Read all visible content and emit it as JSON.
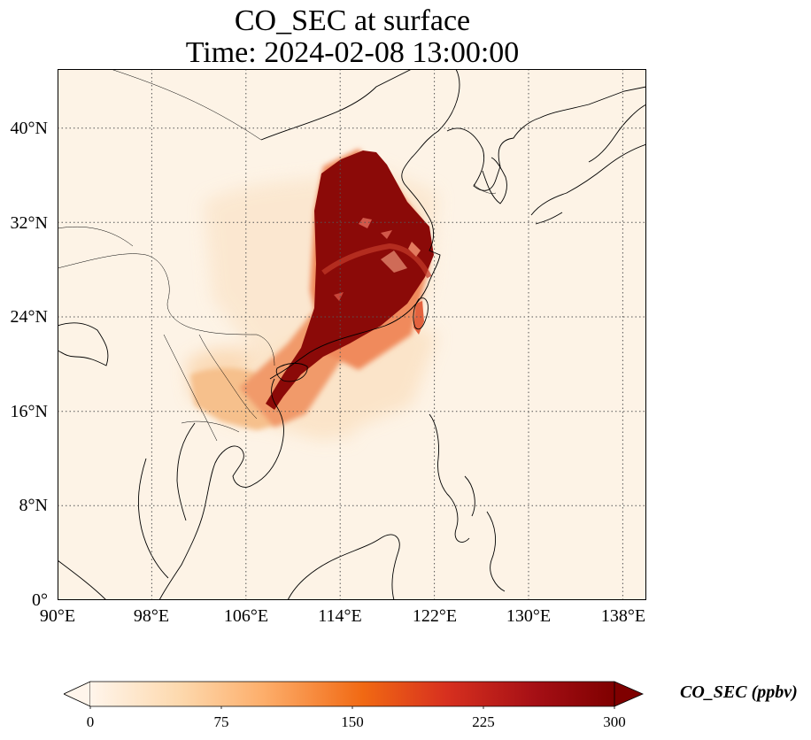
{
  "title_line1": "CO_SEC at surface",
  "title_line2": "Time: 2024-02-08 13:00:00",
  "lat_labels": [
    "40°N",
    "32°N",
    "24°N",
    "16°N",
    "8°N",
    "0°"
  ],
  "lon_labels": [
    "90°E",
    "98°E",
    "106°E",
    "114°E",
    "122°E",
    "130°E",
    "138°E"
  ],
  "colorbar": {
    "label": "CO_SEC (ppbv)",
    "ticks": [
      "0",
      "75",
      "150",
      "225",
      "300"
    ],
    "colors": [
      "#fff5eb",
      "#fdd9ae",
      "#fdae6b",
      "#f16913",
      "#d7301f",
      "#a50f15",
      "#7f0000"
    ]
  },
  "map": {
    "extent_lon": [
      90,
      140
    ],
    "extent_lat": [
      0,
      45
    ],
    "background_color": "#fdf3e6",
    "grid": "dotted"
  }
}
